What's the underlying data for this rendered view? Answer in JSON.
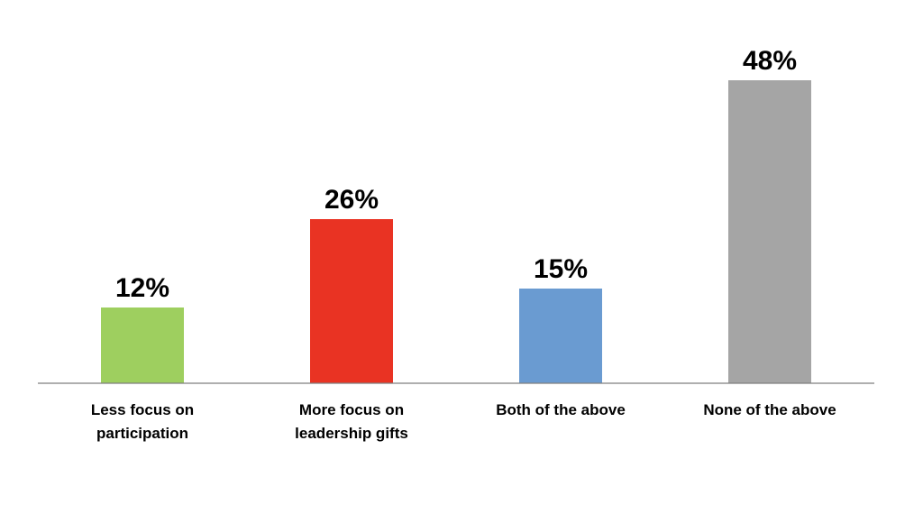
{
  "chart_data": {
    "type": "bar",
    "categories": [
      [
        "Less focus on",
        "participation"
      ],
      [
        "More focus on",
        "leadership gifts"
      ],
      [
        "Both of the above"
      ],
      [
        "None of the above"
      ]
    ],
    "values": [
      12,
      26,
      15,
      48
    ],
    "value_labels": [
      "12%",
      "26%",
      "15%",
      "48%"
    ],
    "colors": [
      "#9ecf5f",
      "#e93323",
      "#6a9bd1",
      "#a5a5a5"
    ],
    "ylim": [
      0,
      55
    ],
    "title": "",
    "xlabel": "",
    "ylabel": "",
    "grid": false,
    "legend": "none"
  }
}
